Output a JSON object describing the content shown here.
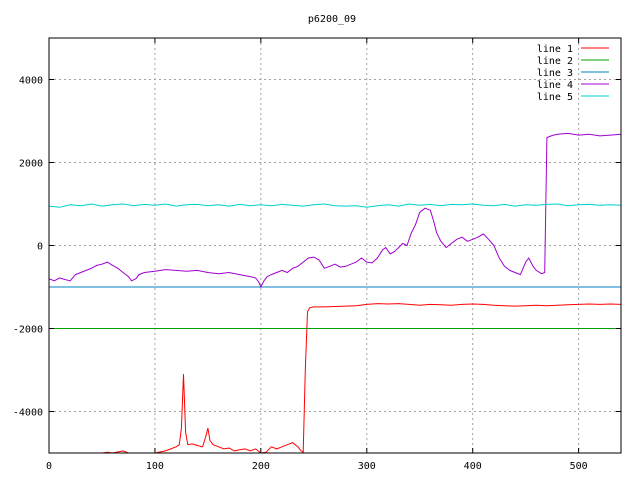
{
  "chart_data": {
    "type": "line",
    "title": "p6200_09",
    "xlabel": "",
    "ylabel": "",
    "xlim": [
      0,
      540
    ],
    "ylim": [
      -5000,
      5000
    ],
    "x_ticks": [
      0,
      100,
      200,
      300,
      400,
      500
    ],
    "y_ticks": [
      -4000,
      -2000,
      0,
      2000,
      4000
    ],
    "grid": true,
    "legend_position": "top-right",
    "series": [
      {
        "name": "line 1",
        "color": "#ff0000",
        "points": [
          [
            0,
            -5000
          ],
          [
            50,
            -5000
          ],
          [
            55,
            -4980
          ],
          [
            60,
            -5000
          ],
          [
            70,
            -4950
          ],
          [
            75,
            -5000
          ],
          [
            100,
            -5000
          ],
          [
            110,
            -4950
          ],
          [
            115,
            -4900
          ],
          [
            120,
            -4850
          ],
          [
            123,
            -4800
          ],
          [
            125,
            -4400
          ],
          [
            127,
            -3100
          ],
          [
            129,
            -4500
          ],
          [
            131,
            -4800
          ],
          [
            135,
            -4780
          ],
          [
            140,
            -4820
          ],
          [
            145,
            -4850
          ],
          [
            148,
            -4600
          ],
          [
            150,
            -4400
          ],
          [
            152,
            -4700
          ],
          [
            155,
            -4800
          ],
          [
            160,
            -4850
          ],
          [
            165,
            -4900
          ],
          [
            170,
            -4880
          ],
          [
            175,
            -4950
          ],
          [
            180,
            -4920
          ],
          [
            185,
            -4900
          ],
          [
            190,
            -4950
          ],
          [
            195,
            -4900
          ],
          [
            200,
            -5000
          ],
          [
            205,
            -4980
          ],
          [
            210,
            -4850
          ],
          [
            215,
            -4900
          ],
          [
            220,
            -4850
          ],
          [
            225,
            -4800
          ],
          [
            230,
            -4750
          ],
          [
            235,
            -4850
          ],
          [
            238,
            -4950
          ],
          [
            240,
            -4980
          ],
          [
            242,
            -3000
          ],
          [
            244,
            -1600
          ],
          [
            246,
            -1500
          ],
          [
            250,
            -1480
          ],
          [
            260,
            -1480
          ],
          [
            270,
            -1470
          ],
          [
            280,
            -1460
          ],
          [
            290,
            -1450
          ],
          [
            300,
            -1420
          ],
          [
            310,
            -1400
          ],
          [
            320,
            -1410
          ],
          [
            330,
            -1400
          ],
          [
            340,
            -1420
          ],
          [
            350,
            -1440
          ],
          [
            360,
            -1420
          ],
          [
            370,
            -1430
          ],
          [
            380,
            -1440
          ],
          [
            390,
            -1420
          ],
          [
            400,
            -1410
          ],
          [
            410,
            -1420
          ],
          [
            420,
            -1440
          ],
          [
            430,
            -1450
          ],
          [
            440,
            -1460
          ],
          [
            450,
            -1450
          ],
          [
            460,
            -1440
          ],
          [
            470,
            -1450
          ],
          [
            480,
            -1440
          ],
          [
            490,
            -1430
          ],
          [
            500,
            -1420
          ],
          [
            510,
            -1410
          ],
          [
            520,
            -1420
          ],
          [
            530,
            -1410
          ],
          [
            540,
            -1420
          ]
        ]
      },
      {
        "name": "line 2",
        "color": "#00a000",
        "points": [
          [
            0,
            -2000
          ],
          [
            540,
            -2000
          ]
        ]
      },
      {
        "name": "line 3",
        "color": "#0080c0",
        "points": [
          [
            0,
            -1000
          ],
          [
            540,
            -1000
          ]
        ]
      },
      {
        "name": "line 4",
        "color": "#a000d0",
        "points": [
          [
            0,
            -800
          ],
          [
            5,
            -850
          ],
          [
            10,
            -780
          ],
          [
            15,
            -820
          ],
          [
            20,
            -850
          ],
          [
            25,
            -700
          ],
          [
            30,
            -650
          ],
          [
            35,
            -600
          ],
          [
            40,
            -550
          ],
          [
            45,
            -480
          ],
          [
            50,
            -450
          ],
          [
            55,
            -400
          ],
          [
            60,
            -480
          ],
          [
            65,
            -550
          ],
          [
            70,
            -650
          ],
          [
            75,
            -750
          ],
          [
            78,
            -850
          ],
          [
            82,
            -800
          ],
          [
            85,
            -700
          ],
          [
            90,
            -650
          ],
          [
            100,
            -620
          ],
          [
            110,
            -580
          ],
          [
            120,
            -600
          ],
          [
            130,
            -620
          ],
          [
            140,
            -600
          ],
          [
            150,
            -650
          ],
          [
            160,
            -680
          ],
          [
            170,
            -650
          ],
          [
            180,
            -700
          ],
          [
            190,
            -750
          ],
          [
            195,
            -780
          ],
          [
            198,
            -880
          ],
          [
            200,
            -1000
          ],
          [
            203,
            -850
          ],
          [
            206,
            -750
          ],
          [
            210,
            -700
          ],
          [
            215,
            -650
          ],
          [
            220,
            -600
          ],
          [
            225,
            -650
          ],
          [
            230,
            -550
          ],
          [
            235,
            -500
          ],
          [
            240,
            -400
          ],
          [
            245,
            -300
          ],
          [
            250,
            -280
          ],
          [
            255,
            -350
          ],
          [
            260,
            -550
          ],
          [
            265,
            -500
          ],
          [
            270,
            -450
          ],
          [
            275,
            -520
          ],
          [
            280,
            -500
          ],
          [
            285,
            -450
          ],
          [
            290,
            -400
          ],
          [
            295,
            -300
          ],
          [
            300,
            -400
          ],
          [
            305,
            -420
          ],
          [
            310,
            -300
          ],
          [
            315,
            -100
          ],
          [
            318,
            -50
          ],
          [
            322,
            -200
          ],
          [
            326,
            -150
          ],
          [
            330,
            -50
          ],
          [
            334,
            50
          ],
          [
            338,
            0
          ],
          [
            342,
            300
          ],
          [
            346,
            500
          ],
          [
            350,
            800
          ],
          [
            355,
            900
          ],
          [
            360,
            850
          ],
          [
            363,
            600
          ],
          [
            366,
            300
          ],
          [
            370,
            100
          ],
          [
            375,
            -50
          ],
          [
            380,
            50
          ],
          [
            385,
            150
          ],
          [
            390,
            200
          ],
          [
            395,
            100
          ],
          [
            400,
            150
          ],
          [
            405,
            200
          ],
          [
            410,
            280
          ],
          [
            415,
            150
          ],
          [
            420,
            0
          ],
          [
            425,
            -300
          ],
          [
            430,
            -500
          ],
          [
            435,
            -600
          ],
          [
            440,
            -650
          ],
          [
            445,
            -700
          ],
          [
            450,
            -400
          ],
          [
            453,
            -300
          ],
          [
            457,
            -500
          ],
          [
            460,
            -600
          ],
          [
            465,
            -680
          ],
          [
            468,
            -650
          ],
          [
            470,
            2600
          ],
          [
            475,
            2650
          ],
          [
            480,
            2680
          ],
          [
            490,
            2700
          ],
          [
            500,
            2660
          ],
          [
            510,
            2680
          ],
          [
            520,
            2640
          ],
          [
            530,
            2660
          ],
          [
            540,
            2680
          ]
        ]
      },
      {
        "name": "line 5",
        "color": "#00d0d0",
        "points": [
          [
            0,
            950
          ],
          [
            10,
            920
          ],
          [
            20,
            980
          ],
          [
            30,
            960
          ],
          [
            40,
            1000
          ],
          [
            50,
            950
          ],
          [
            60,
            980
          ],
          [
            70,
            1000
          ],
          [
            80,
            960
          ],
          [
            90,
            990
          ],
          [
            100,
            970
          ],
          [
            110,
            1000
          ],
          [
            120,
            950
          ],
          [
            130,
            980
          ],
          [
            140,
            990
          ],
          [
            150,
            960
          ],
          [
            160,
            980
          ],
          [
            170,
            950
          ],
          [
            180,
            990
          ],
          [
            190,
            960
          ],
          [
            200,
            980
          ],
          [
            210,
            960
          ],
          [
            220,
            990
          ],
          [
            230,
            970
          ],
          [
            240,
            950
          ],
          [
            250,
            980
          ],
          [
            260,
            1000
          ],
          [
            270,
            960
          ],
          [
            280,
            950
          ],
          [
            290,
            960
          ],
          [
            300,
            920
          ],
          [
            310,
            960
          ],
          [
            320,
            980
          ],
          [
            330,
            950
          ],
          [
            340,
            1000
          ],
          [
            350,
            970
          ],
          [
            360,
            990
          ],
          [
            370,
            960
          ],
          [
            380,
            990
          ],
          [
            390,
            980
          ],
          [
            400,
            1000
          ],
          [
            410,
            970
          ],
          [
            420,
            960
          ],
          [
            430,
            990
          ],
          [
            440,
            950
          ],
          [
            450,
            980
          ],
          [
            460,
            970
          ],
          [
            470,
            990
          ],
          [
            480,
            1000
          ],
          [
            490,
            960
          ],
          [
            500,
            980
          ],
          [
            510,
            990
          ],
          [
            520,
            970
          ],
          [
            530,
            980
          ],
          [
            540,
            970
          ]
        ]
      }
    ]
  }
}
